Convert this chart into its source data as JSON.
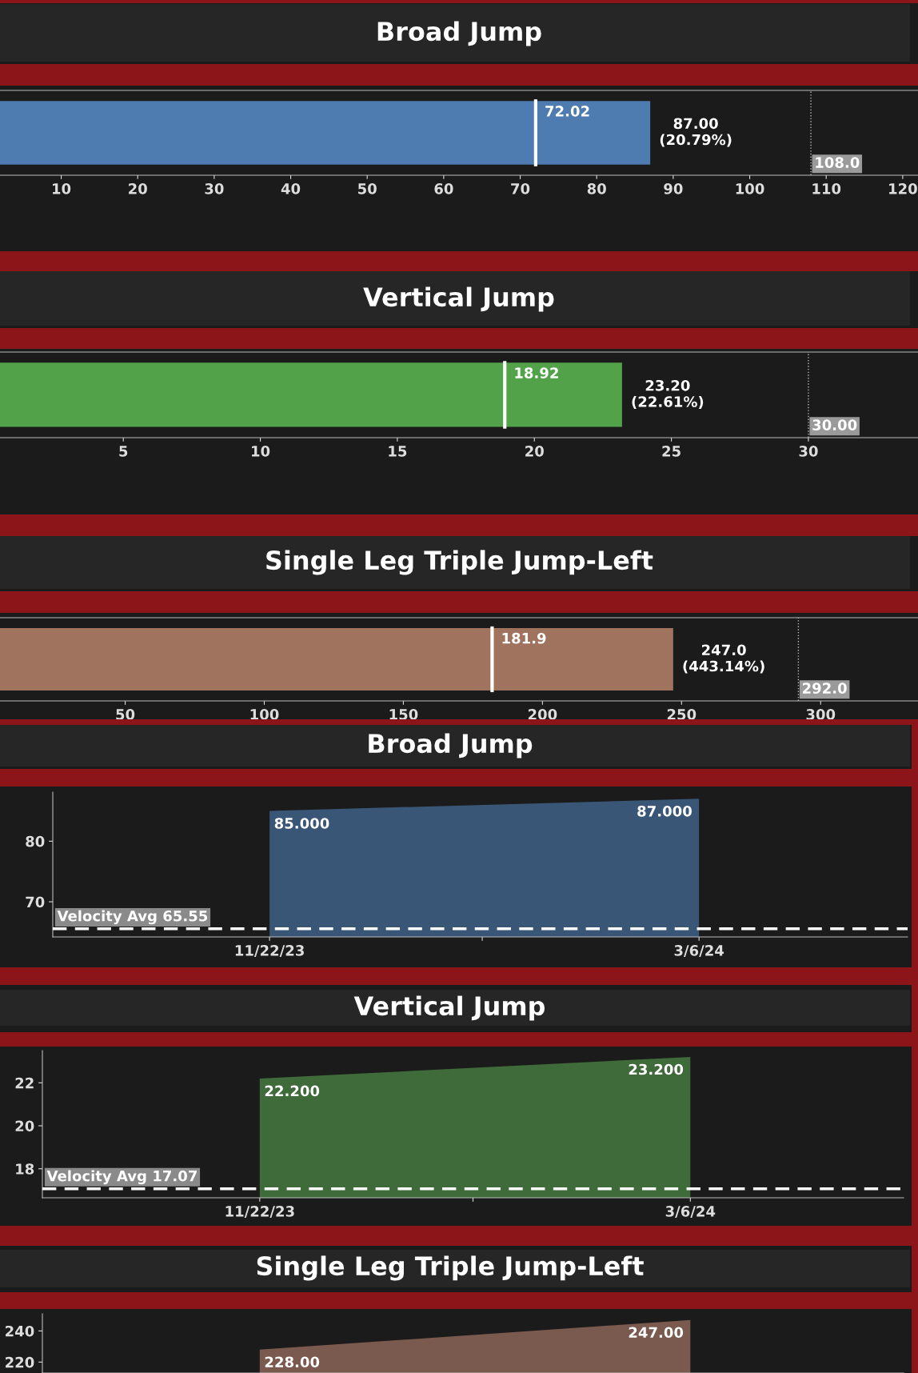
{
  "chart_data": [
    {
      "type": "bar",
      "title": "Broad Jump",
      "orientation": "horizontal",
      "categories": [
        null
      ],
      "values": [
        87.0
      ],
      "color": "#4e7bb0",
      "value_labels": [
        "87.00\n(20.79%)"
      ],
      "xlim": [
        2,
        122
      ],
      "xticks": [
        10,
        20,
        30,
        40,
        50,
        60,
        70,
        80,
        90,
        100,
        110,
        120
      ],
      "tick_labels": "x",
      "ref_lines": [
        {
          "axis": "x",
          "value": 72.02,
          "label": "72.02",
          "color": "#ffffff",
          "line_style": "solid"
        },
        {
          "axis": "x",
          "value": 108.0,
          "label": "108.0",
          "color": "#bbbbbb",
          "line_style": "dotted"
        }
      ]
    },
    {
      "type": "bar",
      "title": "Vertical Jump",
      "orientation": "horizontal",
      "categories": [
        null
      ],
      "values": [
        23.2
      ],
      "color": "#52a24a",
      "value_labels": [
        "23.20\n(22.61%)"
      ],
      "xlim": [
        0.5,
        34
      ],
      "xticks": [
        5,
        10,
        15,
        20,
        25,
        30
      ],
      "tick_labels": "x",
      "ref_lines": [
        {
          "axis": "x",
          "value": 18.92,
          "label": "18.92",
          "color": "#ffffff",
          "line_style": "solid"
        },
        {
          "axis": "x",
          "value": 30.0,
          "label": "30.00",
          "color": "#bbbbbb",
          "line_style": "dotted"
        }
      ]
    },
    {
      "type": "bar",
      "title": "Single Leg Triple Jump-Left",
      "orientation": "horizontal",
      "categories": [
        null
      ],
      "values": [
        247.0
      ],
      "color": "#a0735f",
      "value_labels": [
        "247.0\n(443.14%)"
      ],
      "xlim": [
        5,
        335
      ],
      "xticks": [
        50,
        100,
        150,
        200,
        250,
        300
      ],
      "tick_labels": "x",
      "ref_lines": [
        {
          "axis": "x",
          "value": 181.9,
          "label": "181.9",
          "color": "#ffffff",
          "line_style": "solid"
        },
        {
          "axis": "x",
          "value": 292.0,
          "label": "292.0",
          "color": "#bbbbbb",
          "line_style": "dotted"
        }
      ]
    },
    {
      "type": "area",
      "title": "Broad Jump",
      "x": [
        "2023-11-22",
        "2024-03-06"
      ],
      "values": [
        85.0,
        87.0
      ],
      "color": "#3a5676",
      "value_labels": [
        "85.000",
        "87.000"
      ],
      "xlim": [
        "2023-09-30",
        "2024-04-26"
      ],
      "xticks": [
        {
          "value": "2023-11-22",
          "label": "11/22/23"
        },
        {
          "value": "2024-01-13",
          "label": null
        },
        {
          "value": "2024-03-06",
          "label": "3/6/24"
        }
      ],
      "ylim": [
        64.2,
        88.1
      ],
      "yticks": [
        70,
        80
      ],
      "ref_lines": [
        {
          "axis": "y",
          "value": 65.55,
          "label": "Velocity Avg 65.55",
          "color": "#ffffff",
          "line_style": "dashed"
        }
      ]
    },
    {
      "type": "area",
      "title": "Vertical Jump",
      "x": [
        "2023-11-22",
        "2024-03-06"
      ],
      "values": [
        22.2,
        23.2
      ],
      "color": "#3f6b3a",
      "value_labels": [
        "22.200",
        "23.200"
      ],
      "xlim": [
        "2023-09-30",
        "2024-04-27"
      ],
      "xticks": [
        {
          "value": "2023-11-22",
          "label": "11/22/23"
        },
        {
          "value": "2024-01-13",
          "label": null
        },
        {
          "value": "2024-03-06",
          "label": "3/6/24"
        }
      ],
      "ylim": [
        16.65,
        23.5
      ],
      "yticks": [
        18,
        20,
        22
      ],
      "ref_lines": [
        {
          "axis": "y",
          "value": 17.07,
          "label": "Velocity Avg 17.07",
          "color": "#ffffff",
          "line_style": "dashed"
        }
      ]
    },
    {
      "type": "area",
      "title": "Single Leg Triple Jump-Left",
      "x": [
        "2023-11-22",
        "2024-03-06"
      ],
      "values": [
        228.0,
        247.0
      ],
      "color": "#7a5a4e",
      "value_labels": [
        "228.00",
        "247.00"
      ],
      "xlim": [
        "2023-09-30",
        "2024-04-27"
      ],
      "ylim": [
        213,
        251
      ],
      "yticks": [
        220,
        240
      ],
      "tick_labels": "y"
    }
  ]
}
